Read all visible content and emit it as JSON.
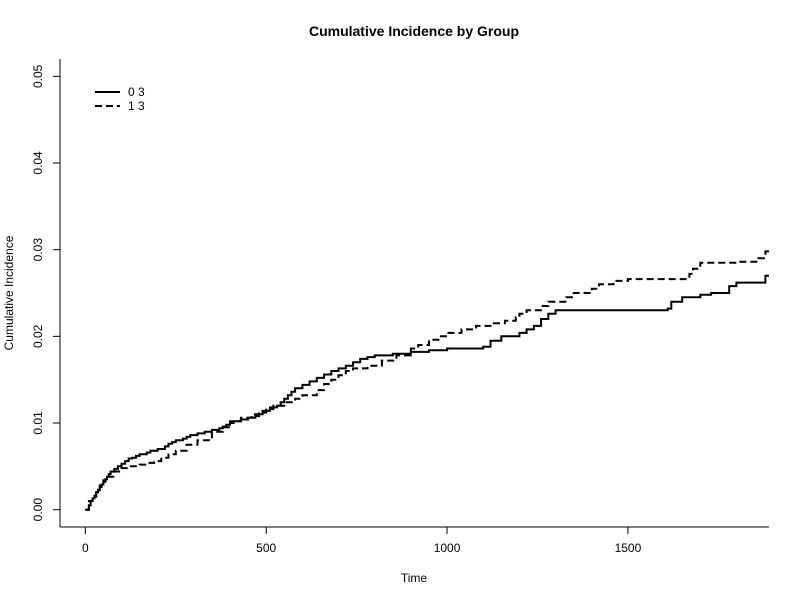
{
  "chart_data": {
    "type": "line",
    "title": "Cumulative Incidence by Group",
    "xlabel": "Time",
    "ylabel": "Cumulative Incidence",
    "xlim": [
      -70,
      1890
    ],
    "ylim": [
      -0.002,
      0.052
    ],
    "x_ticks": [
      0,
      500,
      1000,
      1500
    ],
    "x_tick_labels": [
      "0",
      "500",
      "1000",
      "1500"
    ],
    "y_ticks": [
      0.0,
      0.01,
      0.02,
      0.03,
      0.04,
      0.05
    ],
    "y_tick_labels": [
      "0.00",
      "0.01",
      "0.02",
      "0.03",
      "0.04",
      "0.05"
    ],
    "legend_position": "top-left",
    "step": true,
    "series": [
      {
        "name": "0 3",
        "line_style": "solid",
        "color": "#000000",
        "x": [
          0,
          10,
          15,
          20,
          25,
          30,
          35,
          40,
          45,
          50,
          55,
          60,
          65,
          70,
          80,
          90,
          100,
          110,
          120,
          130,
          140,
          150,
          170,
          180,
          200,
          220,
          230,
          240,
          250,
          270,
          280,
          290,
          310,
          330,
          350,
          370,
          380,
          390,
          400,
          410,
          430,
          450,
          470,
          480,
          490,
          500,
          510,
          520,
          530,
          540,
          550,
          560,
          570,
          580,
          600,
          620,
          640,
          660,
          680,
          700,
          720,
          740,
          760,
          780,
          800,
          850,
          900,
          950,
          1000,
          1100,
          1120,
          1150,
          1200,
          1220,
          1240,
          1260,
          1280,
          1300,
          1610,
          1620,
          1650,
          1700,
          1730,
          1780,
          1800,
          1880,
          1890
        ],
        "y": [
          0.0,
          0.0005,
          0.001,
          0.0013,
          0.0016,
          0.002,
          0.0023,
          0.0026,
          0.0029,
          0.0032,
          0.0035,
          0.0038,
          0.0041,
          0.0044,
          0.0047,
          0.005,
          0.0053,
          0.0056,
          0.0059,
          0.006,
          0.0062,
          0.0064,
          0.0066,
          0.0068,
          0.007,
          0.0073,
          0.0076,
          0.0078,
          0.008,
          0.0082,
          0.0084,
          0.0086,
          0.0088,
          0.009,
          0.0092,
          0.0094,
          0.0096,
          0.0098,
          0.01,
          0.0102,
          0.0104,
          0.0106,
          0.0108,
          0.011,
          0.0112,
          0.0114,
          0.0116,
          0.0118,
          0.012,
          0.0124,
          0.0128,
          0.0132,
          0.0136,
          0.014,
          0.0144,
          0.0148,
          0.0152,
          0.0156,
          0.016,
          0.0163,
          0.0166,
          0.017,
          0.0174,
          0.0176,
          0.0178,
          0.018,
          0.0182,
          0.0184,
          0.0186,
          0.0188,
          0.0195,
          0.02,
          0.0204,
          0.0208,
          0.0212,
          0.022,
          0.0226,
          0.023,
          0.0232,
          0.024,
          0.0245,
          0.0248,
          0.025,
          0.0258,
          0.0262,
          0.027,
          0.027
        ]
      },
      {
        "name": "1 3",
        "line_style": "dashed",
        "color": "#000000",
        "x": [
          0,
          10,
          20,
          30,
          40,
          50,
          60,
          80,
          100,
          120,
          150,
          170,
          190,
          210,
          230,
          250,
          280,
          310,
          350,
          380,
          400,
          430,
          460,
          480,
          500,
          520,
          550,
          580,
          600,
          640,
          660,
          680,
          700,
          720,
          740,
          780,
          820,
          860,
          900,
          920,
          950,
          980,
          1000,
          1040,
          1080,
          1120,
          1160,
          1190,
          1200,
          1220,
          1260,
          1280,
          1330,
          1350,
          1400,
          1420,
          1460,
          1500,
          1540,
          1580,
          1620,
          1660,
          1670,
          1680,
          1700,
          1760,
          1800,
          1860,
          1880,
          1890
        ],
        "y": [
          0.0,
          0.001,
          0.0015,
          0.002,
          0.0028,
          0.0034,
          0.0038,
          0.0044,
          0.0048,
          0.005,
          0.0052,
          0.0054,
          0.0056,
          0.006,
          0.0064,
          0.0068,
          0.0075,
          0.008,
          0.009,
          0.0095,
          0.0102,
          0.0106,
          0.011,
          0.0114,
          0.0118,
          0.012,
          0.0124,
          0.0128,
          0.0132,
          0.0138,
          0.0145,
          0.015,
          0.0155,
          0.016,
          0.0163,
          0.0166,
          0.0172,
          0.0178,
          0.0186,
          0.019,
          0.0196,
          0.02,
          0.0204,
          0.0208,
          0.0212,
          0.0215,
          0.0218,
          0.0222,
          0.0226,
          0.023,
          0.0235,
          0.024,
          0.0245,
          0.025,
          0.0255,
          0.026,
          0.0264,
          0.0266,
          0.0266,
          0.0266,
          0.0266,
          0.0266,
          0.0272,
          0.0278,
          0.0285,
          0.0285,
          0.0286,
          0.029,
          0.0298,
          0.03
        ]
      }
    ]
  }
}
